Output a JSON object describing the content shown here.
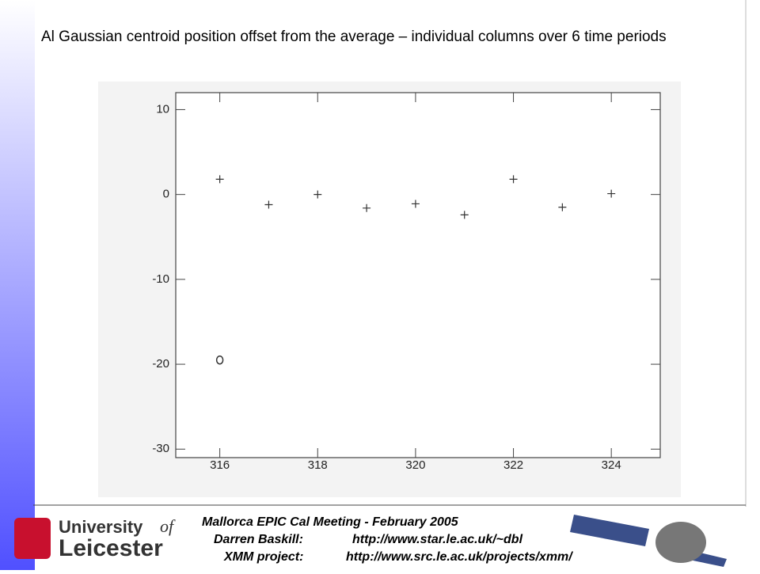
{
  "title": "Al Gaussian centroid position offset from the average – individual columns over 6 time periods",
  "chart_data": {
    "type": "scatter",
    "series": [
      {
        "x": [
          316,
          317,
          318,
          319,
          320,
          321,
          322,
          323,
          324
        ],
        "values": [
          1.8,
          -1.2,
          0.0,
          -1.6,
          -1.1,
          -2.4,
          1.8,
          -1.5,
          0.1
        ],
        "marker": "plus",
        "color": "#333333"
      },
      {
        "x": [
          316
        ],
        "values": [
          -19.5
        ],
        "marker": "circle",
        "color": "#333333"
      }
    ],
    "xlim": [
      315.1,
      325
    ],
    "ylim": [
      -31,
      12
    ],
    "xticks": [
      316,
      318,
      320,
      322,
      324
    ],
    "yticks": [
      10,
      0,
      -10,
      -20,
      -30
    ]
  },
  "footer": {
    "meeting": "Mallorca EPIC Cal Meeting - February 2005",
    "contact_label": "Darren Baskill:",
    "contact_url": "http://www.star.le.ac.uk/~dbl",
    "project_label": "XMM project:",
    "project_url": "http://www.src.le.ac.uk/projects/xmm/"
  },
  "logo": {
    "university": "University",
    "of": "of",
    "name": "Leicester"
  }
}
